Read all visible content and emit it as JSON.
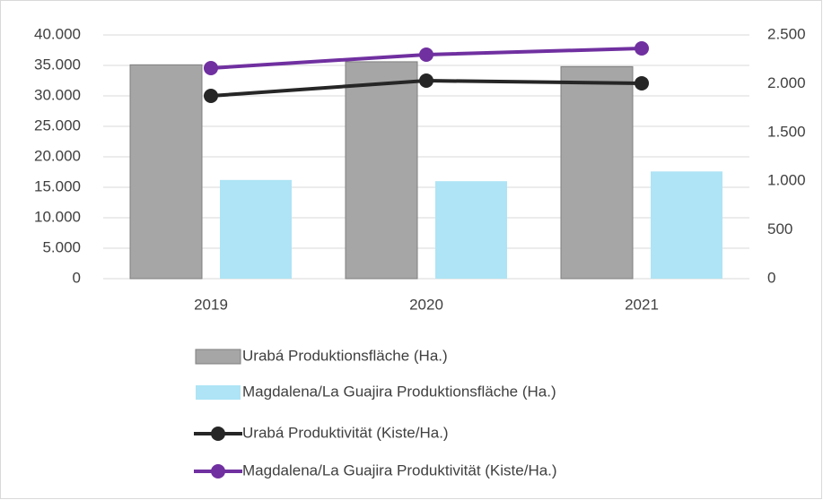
{
  "chart_data": {
    "type": "bar",
    "categories": [
      "2019",
      "2020",
      "2021"
    ],
    "series": [
      {
        "name": "Urabá Produktionsfläche (Ha.)",
        "type": "bar",
        "color": "#a6a6a6",
        "values": [
          35100,
          35600,
          34800
        ]
      },
      {
        "name": "Magdalena/La Guajira Produktionsfläche (Ha.)",
        "type": "bar",
        "color": "#aee4f5",
        "values": [
          16200,
          16000,
          17600
        ]
      },
      {
        "name": "Urabá Produktivität (Kiste/Ha.)",
        "type": "line",
        "axis": "y2",
        "color": "#262626",
        "values": [
          1875,
          2031,
          2004
        ]
      },
      {
        "name": "Magdalena/La Guajira Produktivität (Kiste/Ha.)",
        "type": "line",
        "axis": "y2",
        "color": "#7030a0",
        "values": [
          2160,
          2298,
          2362
        ]
      }
    ],
    "ylim": [
      0,
      40000
    ],
    "yticks": [
      0,
      {
        "value": 5000,
        "label": "5.000"
      },
      {
        "value": 10000,
        "label": "10.000"
      },
      {
        "value": 15000,
        "label": "15.000"
      },
      {
        "value": 20000,
        "label": "20.000"
      },
      {
        "value": 25000,
        "label": "25.000"
      },
      {
        "value": 30000,
        "label": "30.000"
      },
      {
        "value": 35000,
        "label": "35.000"
      },
      {
        "value": 40000,
        "label": "40.000"
      }
    ],
    "y2lim": [
      0,
      2500
    ],
    "y2ticks": [
      0,
      500,
      {
        "value": 1000,
        "label": "1.000"
      },
      {
        "value": 1500,
        "label": "1.500"
      },
      {
        "value": 2000,
        "label": "2.000"
      },
      {
        "value": 2500,
        "label": "2.500"
      }
    ],
    "grid": true,
    "legend": "bottom"
  }
}
